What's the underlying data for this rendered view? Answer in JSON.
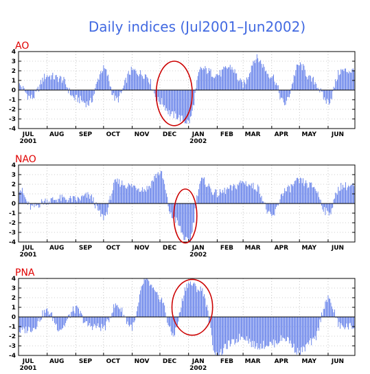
{
  "title": "Daily indices (Jul2001–Jun2002)",
  "chart_data": [
    {
      "type": "bar",
      "panel_label": "AO",
      "ylim": [
        -4,
        4
      ],
      "yticks": [
        -4,
        -3,
        -2,
        -1,
        0,
        1,
        2,
        3,
        4
      ],
      "xlim": [
        "2001-07-01",
        "2002-06-30"
      ],
      "x_tick_labels": [
        "JUL",
        "AUG",
        "SEP",
        "OCT",
        "NOV",
        "DEC",
        "JAN",
        "FEB",
        "MAR",
        "APR",
        "MAY",
        "JUN"
      ],
      "x_year_labels": {
        "JUL": "2001",
        "JAN": "2002"
      },
      "grid": true,
      "bar_color": "#5a78e8",
      "highlight_color": "#cc0000",
      "highlight": {
        "x_start": "2001-11-27",
        "x_end": "2002-01-05",
        "y_min": -3.7,
        "y_max": 3.0
      },
      "x": [
        "2001-07-01",
        "2001-07-15",
        "2001-08-01",
        "2001-08-15",
        "2001-09-01",
        "2001-09-15",
        "2001-10-01",
        "2001-10-15",
        "2001-11-01",
        "2001-11-15",
        "2001-12-01",
        "2001-12-15",
        "2002-01-01",
        "2002-01-15",
        "2002-02-01",
        "2002-02-15",
        "2002-03-01",
        "2002-03-15",
        "2002-04-01",
        "2002-04-15",
        "2002-05-01",
        "2002-05-15",
        "2002-06-01",
        "2002-06-15"
      ],
      "values": [
        0.5,
        -0.8,
        1.5,
        1.2,
        -0.9,
        -1.4,
        2.2,
        -1.0,
        2.0,
        1.6,
        -1.2,
        -2.6,
        -3.3,
        2.2,
        1.6,
        2.4,
        0.6,
        3.3,
        1.5,
        -1.4,
        2.6,
        1.0,
        -1.2,
        2.0
      ]
    },
    {
      "type": "bar",
      "panel_label": "NAO",
      "ylim": [
        -4,
        4
      ],
      "yticks": [
        -4,
        -3,
        -2,
        -1,
        0,
        1,
        2,
        3,
        4
      ],
      "xlim": [
        "2001-07-01",
        "2002-06-30"
      ],
      "x_tick_labels": [
        "JUL",
        "AUG",
        "SEP",
        "OCT",
        "NOV",
        "DEC",
        "JAN",
        "FEB",
        "MAR",
        "APR",
        "MAY",
        "JUN"
      ],
      "x_year_labels": {
        "JUL": "2001",
        "JAN": "2002"
      },
      "grid": true,
      "bar_color": "#5a78e8",
      "highlight_color": "#cc0000",
      "highlight": {
        "x_start": "2001-12-16",
        "x_end": "2002-01-10",
        "y_min": -4.1,
        "y_max": 1.5
      },
      "x": [
        "2001-07-01",
        "2001-07-15",
        "2001-08-01",
        "2001-08-15",
        "2001-09-01",
        "2001-09-15",
        "2001-10-01",
        "2001-10-15",
        "2001-11-01",
        "2001-11-15",
        "2001-12-01",
        "2001-12-15",
        "2002-01-01",
        "2002-01-15",
        "2002-02-01",
        "2002-02-15",
        "2002-03-01",
        "2002-03-15",
        "2002-04-01",
        "2002-04-15",
        "2002-05-01",
        "2002-05-15",
        "2002-06-01",
        "2002-06-15"
      ],
      "values": [
        1.6,
        -0.4,
        0.3,
        0.5,
        0.4,
        0.8,
        -1.4,
        2.2,
        1.8,
        1.5,
        3.2,
        -1.5,
        -4.0,
        2.4,
        1.0,
        1.5,
        2.2,
        1.7,
        -1.4,
        1.3,
        2.3,
        1.8,
        -1.0,
        1.8
      ]
    },
    {
      "type": "bar",
      "panel_label": "PNA",
      "ylim": [
        -4,
        4
      ],
      "yticks": [
        -4,
        -3,
        -2,
        -1,
        0,
        1,
        2,
        3,
        4
      ],
      "xlim": [
        "2001-07-01",
        "2002-06-30"
      ],
      "x_tick_labels": [
        "JUL",
        "AUG",
        "SEP",
        "OCT",
        "NOV",
        "DEC",
        "JAN",
        "FEB",
        "MAR",
        "APR",
        "MAY",
        "JUN"
      ],
      "x_year_labels": {
        "JUL": "2001",
        "JAN": "2002"
      },
      "grid": true,
      "bar_color": "#5a78e8",
      "highlight_color": "#cc0000",
      "highlight": {
        "x_start": "2001-12-14",
        "x_end": "2002-01-27",
        "y_min": -1.9,
        "y_max": 3.9
      },
      "x": [
        "2001-07-01",
        "2001-07-15",
        "2001-08-01",
        "2001-08-15",
        "2001-09-01",
        "2001-09-15",
        "2001-10-01",
        "2001-10-15",
        "2001-11-01",
        "2001-11-15",
        "2001-12-01",
        "2001-12-15",
        "2002-01-01",
        "2002-01-15",
        "2002-02-01",
        "2002-02-15",
        "2002-03-01",
        "2002-03-15",
        "2002-04-01",
        "2002-04-15",
        "2002-05-01",
        "2002-05-15",
        "2002-06-01",
        "2002-06-15"
      ],
      "values": [
        -1.5,
        -1.2,
        0.6,
        -1.2,
        0.8,
        -0.9,
        -1.1,
        1.2,
        -1.0,
        3.8,
        2.0,
        -1.8,
        3.5,
        2.8,
        -4.0,
        -2.8,
        -2.0,
        -3.0,
        -2.8,
        -2.2,
        -3.6,
        -2.6,
        1.8,
        -1.0
      ]
    }
  ]
}
